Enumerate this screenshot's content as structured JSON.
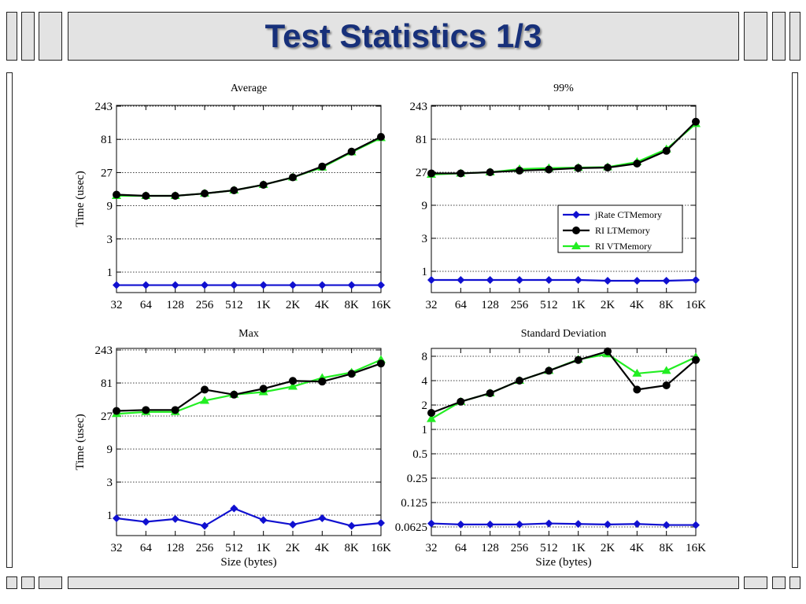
{
  "slide": {
    "title": "Test Statistics 1/3"
  },
  "series_styles": [
    {
      "name": "jRate CTMemory",
      "color": "#1010d0",
      "marker": "diamond"
    },
    {
      "name": "RI LTMemory",
      "color": "#000000",
      "marker": "circle"
    },
    {
      "name": "RI VTMemory",
      "color": "#22ee22",
      "marker": "triangle"
    }
  ],
  "chart_data": [
    {
      "type": "line",
      "title": "Average",
      "xlabel": "",
      "ylabel": "Time (usec)",
      "yscale": "log",
      "ylim": [
        0.65,
        243
      ],
      "yticks": [
        1,
        3,
        9,
        27,
        81,
        243
      ],
      "ytick_labels": [
        "1",
        "3",
        "9",
        "27",
        "81",
        "243"
      ],
      "categories": [
        "32",
        "64",
        "128",
        "256",
        "512",
        "1K",
        "2K",
        "4K",
        "8K",
        "16K"
      ],
      "grid": "y",
      "legend": "none",
      "series": [
        {
          "name": "jRate CTMemory",
          "values": [
            0.65,
            0.65,
            0.65,
            0.65,
            0.65,
            0.65,
            0.65,
            0.65,
            0.65,
            0.65
          ]
        },
        {
          "name": "RI LTMemory",
          "values": [
            13,
            12.5,
            12.5,
            13.5,
            15,
            18,
            23,
            33,
            54,
            88
          ]
        },
        {
          "name": "RI VTMemory",
          "values": [
            12.5,
            12.5,
            12.5,
            13.5,
            15,
            18,
            23,
            32,
            53,
            85
          ]
        }
      ]
    },
    {
      "type": "line",
      "title": "99%",
      "xlabel": "",
      "ylabel": "",
      "yscale": "log",
      "ylim": [
        0.65,
        243
      ],
      "yticks": [
        1,
        3,
        9,
        27,
        81,
        243
      ],
      "ytick_labels": [
        "1",
        "3",
        "9",
        "27",
        "81",
        "243"
      ],
      "categories": [
        "32",
        "64",
        "128",
        "256",
        "512",
        "1K",
        "2K",
        "4K",
        "8K",
        "16K"
      ],
      "grid": "y",
      "legend": "middle-right",
      "series": [
        {
          "name": "jRate CTMemory",
          "values": [
            0.75,
            0.75,
            0.75,
            0.75,
            0.75,
            0.75,
            0.73,
            0.73,
            0.73,
            0.75
          ]
        },
        {
          "name": "RI LTMemory",
          "values": [
            26,
            26,
            27,
            28.5,
            29.5,
            31,
            31.5,
            36,
            55,
            145
          ]
        },
        {
          "name": "RI VTMemory",
          "values": [
            25,
            26,
            27,
            30,
            31,
            31.5,
            32,
            38,
            58,
            135
          ]
        }
      ]
    },
    {
      "type": "line",
      "title": "Max",
      "xlabel": "Size (bytes)",
      "ylabel": "Time (usec)",
      "yscale": "log",
      "ylim": [
        0.65,
        243
      ],
      "yticks": [
        1,
        3,
        9,
        27,
        81,
        243
      ],
      "ytick_labels": [
        "1",
        "3",
        "9",
        "27",
        "81",
        "243"
      ],
      "categories": [
        "32",
        "64",
        "128",
        "256",
        "512",
        "1K",
        "2K",
        "4K",
        "8K",
        "16K"
      ],
      "grid": "y",
      "legend": "none",
      "series": [
        {
          "name": "jRate CTMemory",
          "values": [
            0.9,
            0.8,
            0.88,
            0.7,
            1.25,
            0.85,
            0.73,
            0.9,
            0.7,
            0.77
          ]
        },
        {
          "name": "RI LTMemory",
          "values": [
            32,
            33,
            33,
            65,
            55,
            67,
            87,
            85,
            110,
            155
          ]
        },
        {
          "name": "RI VTMemory",
          "values": [
            29,
            31,
            31,
            45,
            55,
            60,
            72,
            96,
            115,
            175
          ]
        }
      ]
    },
    {
      "type": "line",
      "title": "Standard Deviation",
      "xlabel": "Size (bytes)",
      "ylabel": "",
      "yscale": "log",
      "ylim": [
        0.0625,
        10
      ],
      "yticks": [
        0.0625,
        0.125,
        0.25,
        0.5,
        1,
        2,
        4,
        8
      ],
      "ytick_labels": [
        "0.0625",
        "0.125",
        "0.25",
        "0.5",
        "1",
        "2",
        "4",
        "8"
      ],
      "categories": [
        "32",
        "64",
        "128",
        "256",
        "512",
        "1K",
        "2K",
        "4K",
        "8K",
        "16K"
      ],
      "grid": "y",
      "legend": "none",
      "series": [
        {
          "name": "jRate CTMemory",
          "values": [
            0.069,
            0.067,
            0.067,
            0.067,
            0.069,
            0.068,
            0.067,
            0.068,
            0.066,
            0.066
          ]
        },
        {
          "name": "RI LTMemory",
          "values": [
            1.6,
            2.2,
            2.8,
            4.0,
            5.3,
            7.2,
            9.2,
            3.1,
            3.5,
            7.2
          ]
        },
        {
          "name": "RI VTMemory",
          "values": [
            1.35,
            2.2,
            2.8,
            4.0,
            5.3,
            7.3,
            8.5,
            4.9,
            5.3,
            7.8
          ]
        }
      ]
    }
  ]
}
